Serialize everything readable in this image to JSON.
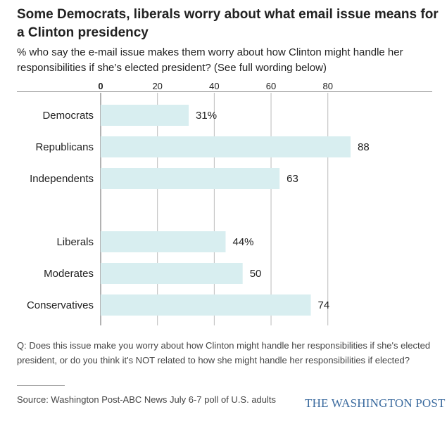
{
  "title": "Some Democrats, liberals worry about what email issue means for a Clinton presidency",
  "subtitle": "% who say the e-mail issue makes them worry about how Clinton might handle her responsibilities if she’s elected president? (See full wording below)",
  "note": "Q: Does this issue make you worry about how Clinton might handle her responsibilities if she's elected president, or do you think it's NOT related to how she might handle her responsibilities if elected?",
  "source": "Source: Washington Post-ABC News July 6-7 poll of U.S. adults",
  "logo": "THE WASHINGTON POST",
  "colors": {
    "bar": "#d8eef0",
    "grid": "#bbbbbb",
    "text": "#222222"
  },
  "chart_data": {
    "type": "bar",
    "orientation": "horizontal",
    "xlim": [
      0,
      88
    ],
    "ticks": [
      0,
      20,
      40,
      60,
      80
    ],
    "tick_labels": [
      "0",
      "20",
      "40",
      "60",
      "80"
    ],
    "groups": [
      {
        "categories": [
          "Democrats",
          "Republicans",
          "Independents"
        ],
        "values": [
          31,
          88,
          63
        ],
        "value_labels": [
          "31%",
          "88",
          "63"
        ]
      },
      {
        "categories": [
          "Liberals",
          "Moderates",
          "Conservatives"
        ],
        "values": [
          44,
          50,
          74
        ],
        "value_labels": [
          "44%",
          "50",
          "74"
        ]
      }
    ]
  }
}
